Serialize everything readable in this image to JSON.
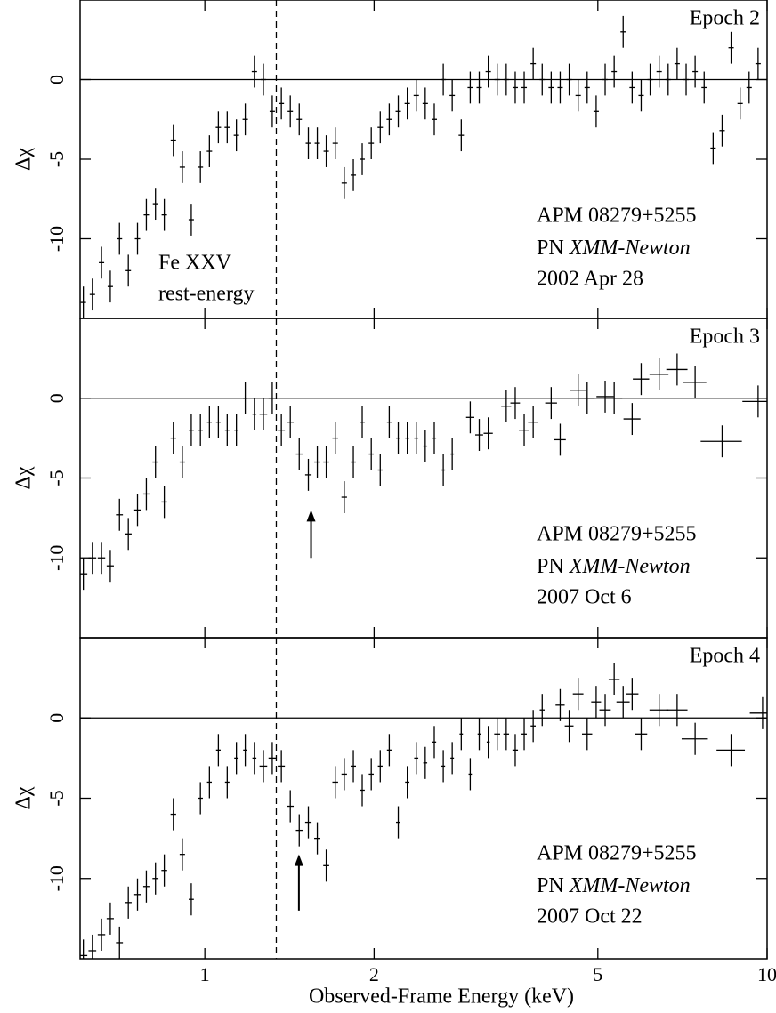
{
  "chart_data": [
    {
      "type": "scatter",
      "xscale": "log",
      "xlim": [
        0.6,
        10
      ],
      "ylim": [
        -15,
        5
      ],
      "xticks": [
        1,
        2,
        5,
        10
      ],
      "yticks": [
        -10,
        -5,
        0
      ],
      "ylabel": "Δχ",
      "hline": 0,
      "vline": 1.34,
      "color": "#000000",
      "epoch_label": "Epoch 2",
      "source": "APM 08279+5255",
      "instrument": "PN",
      "observatory": "XMM-Newton",
      "date": "2002 Apr 28",
      "line_label": [
        "Fe XXV",
        "rest-energy"
      ],
      "x": [
        0.608,
        0.631,
        0.655,
        0.679,
        0.705,
        0.731,
        0.759,
        0.787,
        0.817,
        0.847,
        0.879,
        0.912,
        0.946,
        0.982,
        1.019,
        1.057,
        1.096,
        1.138,
        1.18,
        1.225,
        1.271,
        1.318,
        1.368,
        1.419,
        1.472,
        1.528,
        1.585,
        1.644,
        1.706,
        1.77,
        1.837,
        1.905,
        1.977,
        2.051,
        2.128,
        2.208,
        2.291,
        2.377,
        2.466,
        2.559,
        2.655,
        2.754,
        2.858,
        2.965,
        3.076,
        3.192,
        3.311,
        3.436,
        3.565,
        3.698,
        3.837,
        3.981,
        4.13,
        4.285,
        4.446,
        4.613,
        4.786,
        4.966,
        5.152,
        5.346,
        5.546,
        5.754,
        5.97,
        6.194,
        6.427,
        6.668,
        6.918,
        7.178,
        7.447,
        7.727,
        8.017,
        8.318,
        8.63,
        8.954,
        9.29,
        9.638
      ],
      "values": [
        -14,
        -13.5,
        -11.5,
        -13,
        -10,
        -12,
        -10,
        -8.5,
        -7.8,
        -8.5,
        -3.8,
        -5.5,
        -8.8,
        -5.5,
        -4.5,
        -3,
        -3,
        -3.5,
        -2.5,
        0.5,
        0,
        -2,
        -1.5,
        -2,
        -2.5,
        -4,
        -4,
        -4.5,
        -4,
        -6.5,
        -6,
        -5,
        -4,
        -3,
        -2.5,
        -2,
        -1.5,
        -1,
        -1.5,
        -2.5,
        0,
        -1,
        -3.5,
        -0.5,
        -0.5,
        0.5,
        0,
        0,
        -0.5,
        -0.5,
        1,
        0,
        -0.5,
        -0.5,
        0,
        -1,
        -0.5,
        -2,
        0,
        0.5,
        3,
        -0.5,
        -1,
        0,
        0.5,
        0,
        1,
        0,
        0.5,
        -0.5,
        -4.3,
        -3.2,
        2,
        -1.5,
        -0.5,
        1
      ],
      "errors": [
        1,
        1,
        1,
        1,
        1,
        1,
        1,
        1,
        1,
        1,
        1,
        1,
        1,
        1,
        1,
        1,
        1,
        1,
        1,
        1,
        1,
        1,
        1,
        1,
        1,
        1,
        1,
        1,
        1,
        1,
        1,
        1,
        1,
        1,
        1,
        1,
        1,
        1,
        1,
        1,
        1,
        1,
        1,
        1,
        1,
        1,
        1,
        1,
        1,
        1,
        1,
        1,
        1,
        1,
        1,
        1,
        1,
        1,
        1,
        1,
        1,
        1,
        1,
        1,
        1,
        1,
        1,
        1,
        1,
        1,
        1,
        1,
        1,
        1,
        1,
        1
      ]
    },
    {
      "type": "scatter",
      "xscale": "log",
      "xlim": [
        0.6,
        10
      ],
      "ylim": [
        -15,
        5
      ],
      "xticks": [
        1,
        2,
        5,
        10
      ],
      "yticks": [
        -10,
        -5,
        0
      ],
      "ylabel": "Δχ",
      "hline": 0,
      "vline": 1.34,
      "color": "#000000",
      "epoch_label": "Epoch 3",
      "source": "APM 08279+5255",
      "instrument": "PN",
      "observatory": "XMM-Newton",
      "date": "2007 Oct 6",
      "arrow": {
        "x": 1.545,
        "y": [
          -10,
          -7
        ]
      },
      "x": [
        0.608,
        0.631,
        0.655,
        0.679,
        0.705,
        0.731,
        0.759,
        0.787,
        0.817,
        0.847,
        0.879,
        0.912,
        0.946,
        0.982,
        1.019,
        1.057,
        1.096,
        1.138,
        1.18,
        1.225,
        1.271,
        1.318,
        1.368,
        1.419,
        1.472,
        1.528,
        1.585,
        1.644,
        1.706,
        1.77,
        1.837,
        1.905,
        1.977,
        2.051,
        2.128,
        2.208,
        2.291,
        2.377,
        2.466,
        2.559,
        2.655,
        2.754,
        2.965,
        3.076,
        3.192,
        3.436,
        3.565,
        3.698,
        3.837,
        4.13,
        4.285,
        4.613,
        4.786,
        5.152,
        5.346,
        5.754,
        5.97,
        6.427,
        6.918,
        7.447,
        8.318,
        9.638
      ],
      "values": [
        -11,
        -10,
        -10,
        -10.5,
        -7.3,
        -8.5,
        -7,
        -6,
        -4,
        -6.5,
        -2.5,
        -4,
        -2,
        -2,
        -1.5,
        -1.5,
        -2,
        -2,
        0,
        -1,
        -1,
        0,
        -2,
        -1.5,
        -3.5,
        -4.8,
        -4,
        -4,
        -2.5,
        -6.2,
        -4,
        -1.5,
        -3.5,
        -4.5,
        -1.5,
        -2.5,
        -2.5,
        -2.5,
        -3,
        -2.5,
        -4.5,
        -3.5,
        -1.2,
        -2.3,
        -2.2,
        -0.5,
        -0.3,
        -2,
        -1.5,
        -0.3,
        -2.6,
        0.5,
        0,
        0.1,
        0,
        -1.3,
        1.2,
        1.5,
        1.8,
        1,
        -2.7,
        -0.2
      ],
      "errors": [
        1,
        1,
        1,
        1,
        1,
        1,
        1,
        1,
        1,
        1,
        1,
        1,
        1,
        1,
        1,
        1,
        1,
        1,
        1,
        1,
        1,
        1,
        1,
        1,
        1,
        1,
        1,
        1,
        1,
        1,
        1,
        1,
        1,
        1,
        1,
        1,
        1,
        1,
        1,
        1,
        1,
        1,
        1,
        1,
        1,
        1,
        1,
        1,
        1,
        1,
        1,
        1,
        1,
        1,
        1,
        1,
        1,
        1,
        1,
        1,
        1,
        1
      ],
      "x_errors": [
        0.01,
        0.01,
        0.01,
        0.01,
        0.01,
        0.01,
        0.01,
        0.01,
        0.01,
        0.01,
        0.01,
        0.01,
        0.01,
        0.01,
        0.01,
        0.01,
        0.01,
        0.01,
        0.01,
        0.01,
        0.02,
        0.02,
        0.02,
        0.02,
        0.02,
        0.02,
        0.02,
        0.02,
        0.02,
        0.02,
        0.02,
        0.02,
        0.02,
        0.02,
        0.02,
        0.02,
        0.02,
        0.02,
        0.02,
        0.02,
        0.02,
        0.02,
        0.05,
        0.05,
        0.06,
        0.07,
        0.07,
        0.08,
        0.08,
        0.1,
        0.1,
        0.15,
        0.15,
        0.18,
        0.18,
        0.2,
        0.2,
        0.25,
        0.3,
        0.35,
        0.7,
        0.6
      ]
    },
    {
      "type": "scatter",
      "xscale": "log",
      "xlim": [
        0.6,
        10
      ],
      "ylim": [
        -15,
        5
      ],
      "xticks": [
        1,
        2,
        5,
        10
      ],
      "yticks": [
        -10,
        -5,
        0
      ],
      "ylabel": "Δχ",
      "xlabel": "Observed-Frame Energy (keV)",
      "hline": 0,
      "vline": 1.34,
      "color": "#000000",
      "epoch_label": "Epoch 4",
      "source": "APM 08279+5255",
      "instrument": "PN",
      "observatory": "XMM-Newton",
      "date": "2007 Oct 22",
      "arrow": {
        "x": 1.47,
        "y": [
          -12,
          -8.5
        ]
      },
      "x": [
        0.608,
        0.631,
        0.655,
        0.679,
        0.705,
        0.731,
        0.759,
        0.787,
        0.817,
        0.847,
        0.879,
        0.912,
        0.946,
        0.982,
        1.019,
        1.057,
        1.096,
        1.138,
        1.18,
        1.225,
        1.271,
        1.318,
        1.368,
        1.419,
        1.472,
        1.528,
        1.585,
        1.644,
        1.706,
        1.77,
        1.837,
        1.905,
        1.977,
        2.051,
        2.128,
        2.208,
        2.291,
        2.377,
        2.466,
        2.559,
        2.655,
        2.754,
        2.858,
        2.965,
        3.076,
        3.192,
        3.311,
        3.436,
        3.565,
        3.698,
        3.837,
        3.981,
        4.285,
        4.446,
        4.613,
        4.786,
        4.966,
        5.152,
        5.346,
        5.546,
        5.754,
        5.97,
        6.427,
        6.918,
        7.447,
        8.63,
        9.817
      ],
      "values": [
        -14.8,
        -14.5,
        -13.5,
        -12.5,
        -14,
        -11.5,
        -11,
        -10.5,
        -10,
        -9.5,
        -6,
        -8.5,
        -11.3,
        -5,
        -4,
        -2,
        -4,
        -2.5,
        -2,
        -2.5,
        -3,
        -2.5,
        -3,
        -5.5,
        -7,
        -6.5,
        -7.5,
        -9.2,
        -4,
        -3.5,
        -3,
        -4.5,
        -3.5,
        -3,
        -2,
        -6.5,
        -4,
        -2.5,
        -2.8,
        -1.5,
        -3,
        -2.5,
        -1,
        -3.5,
        -1,
        -1.5,
        -1,
        -1,
        -2,
        -1,
        -0.5,
        0.5,
        0.8,
        -0.5,
        1.5,
        -1,
        1,
        0.5,
        2.4,
        1,
        1.5,
        -1,
        0.5,
        0.5,
        -1.3,
        -2,
        0.3
      ],
      "errors": [
        1,
        1,
        1,
        1,
        1,
        1,
        1,
        1,
        1,
        1,
        1,
        1,
        1,
        1,
        1,
        1,
        1,
        1,
        1,
        1,
        1,
        1,
        1,
        1,
        1,
        1,
        1,
        1,
        1,
        1,
        1,
        1,
        1,
        1,
        1,
        1,
        1,
        1,
        1,
        1,
        1,
        1,
        1,
        1,
        1,
        1,
        1,
        1,
        1,
        1,
        1,
        1,
        1,
        1,
        1,
        1,
        1,
        1,
        1,
        1,
        1,
        1,
        1,
        1,
        1,
        1,
        1
      ],
      "x_errors": [
        0.01,
        0.01,
        0.01,
        0.01,
        0.01,
        0.01,
        0.01,
        0.01,
        0.01,
        0.01,
        0.01,
        0.01,
        0.01,
        0.01,
        0.01,
        0.01,
        0.01,
        0.01,
        0.01,
        0.01,
        0.02,
        0.02,
        0.02,
        0.02,
        0.02,
        0.02,
        0.02,
        0.02,
        0.02,
        0.02,
        0.02,
        0.02,
        0.02,
        0.02,
        0.02,
        0.02,
        0.02,
        0.02,
        0.02,
        0.02,
        0.02,
        0.02,
        0.02,
        0.02,
        0.02,
        0.02,
        0.04,
        0.04,
        0.04,
        0.04,
        0.04,
        0.04,
        0.08,
        0.08,
        0.1,
        0.1,
        0.1,
        0.12,
        0.12,
        0.15,
        0.15,
        0.15,
        0.25,
        0.3,
        0.4,
        0.5,
        0.5
      ]
    }
  ]
}
